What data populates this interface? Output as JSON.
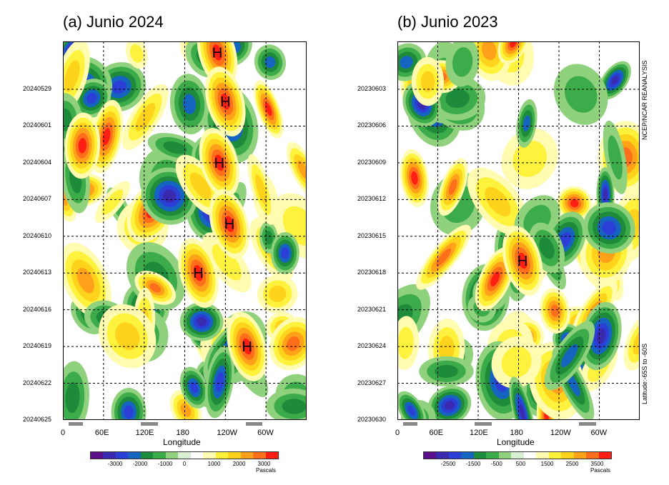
{
  "chart_data": [
    {
      "type": "heatmap",
      "title": "(a) Junio 2024",
      "xlabel": "Longitude",
      "ylabel": "",
      "x_tick_labels": [
        "0",
        "60E",
        "120E",
        "180",
        "120W",
        "60W"
      ],
      "y_tick_labels": [
        "20240529",
        "20240601",
        "20240604",
        "20240607",
        "20240610",
        "20240613",
        "20240616",
        "20240619",
        "20240622",
        "20240625"
      ],
      "colorbar_labels": [
        "-3000",
        "-2000",
        "-1000",
        "0",
        "1000",
        "2000",
        "3000"
      ],
      "colorbar_unit": "Pascals",
      "annotations": [
        "H",
        "H",
        "H",
        "H",
        "H",
        "H"
      ],
      "high_centers": [
        {
          "lon": 228,
          "date": "20240526"
        },
        {
          "lon": 240,
          "date": "20240530"
        },
        {
          "lon": 231,
          "date": "20240604"
        },
        {
          "lon": 246,
          "date": "20240609"
        },
        {
          "lon": 200,
          "date": "20240613"
        },
        {
          "lon": 272,
          "date": "20240619"
        }
      ]
    },
    {
      "type": "heatmap",
      "title": "(b) Junio 2023",
      "xlabel": "Longitude",
      "ylabel": "",
      "x_tick_labels": [
        "0",
        "60E",
        "120E",
        "180",
        "120W",
        "60W"
      ],
      "y_tick_labels": [
        "20230603",
        "20230606",
        "20230609",
        "20230612",
        "20230615",
        "20230618",
        "20230621",
        "20230624",
        "20230627",
        "20230630"
      ],
      "colorbar_labels": [
        "-2500",
        "-1500",
        "-500",
        "500",
        "1500",
        "2500",
        "3500"
      ],
      "colorbar_unit": "Pascals",
      "annotations": [
        "H"
      ],
      "high_centers": [
        {
          "lon": 186,
          "date": "20230617"
        }
      ]
    }
  ],
  "side_labels": {
    "source": "NCEP/NCAR REANALYSIS",
    "latitude": "Latitude:-65S to -60S"
  },
  "colors": {
    "palette": [
      "#5a0e8a",
      "#3a2ab0",
      "#2b3fd6",
      "#1565c0",
      "#1e8b3a",
      "#3cab4a",
      "#8fd17c",
      "#d9efd4",
      "#ffffff",
      "#fffbb0",
      "#fff23c",
      "#ffd21c",
      "#ffa21a",
      "#ff6e1a",
      "#ff1e14"
    ],
    "land_marker": "#888888"
  }
}
